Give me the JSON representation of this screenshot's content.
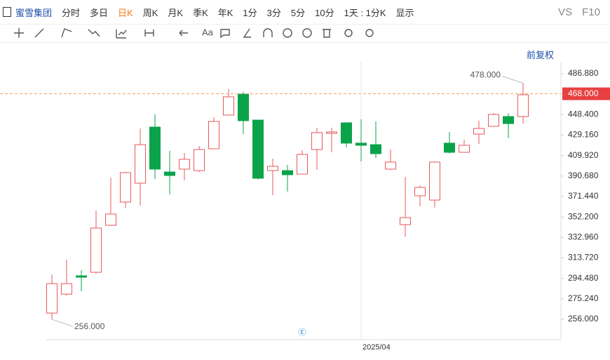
{
  "toolbar": {
    "stock": "蜜雪集团",
    "periods": [
      "分时",
      "多日",
      "日K",
      "周K",
      "月K",
      "季K",
      "年K",
      "1分",
      "3分",
      "5分",
      "10分"
    ],
    "active": "日K",
    "range": "1天 : 1分K",
    "display": "显示",
    "compare": "VS",
    "f10": "F10"
  },
  "adjust": "前复权",
  "chart_data": {
    "type": "candlestick",
    "categories": [
      null,
      null,
      null,
      null,
      null,
      null,
      null,
      null,
      null,
      null,
      null,
      null,
      null,
      null,
      null,
      null,
      null,
      null,
      null,
      null,
      null,
      "2025/04",
      null,
      null,
      null,
      null,
      null,
      null,
      null,
      null,
      null,
      null,
      null
    ],
    "open": [
      261.9,
      279.7,
      296.9,
      300.2,
      344.4,
      366.2,
      384,
      436.7,
      394.5,
      397.2,
      395.8,
      416.3,
      448,
      467.7,
      443.3,
      395.8,
      395.8,
      392.5,
      415.6,
      430.8,
      440.7,
      421.6,
      420.2,
      397.2,
      345,
      372.1,
      368.1,
      421.6,
      413,
      430.1,
      437.4,
      446.6,
      446.6
    ],
    "high": [
      298.2,
      312.1,
      302.2,
      358.2,
      389.2,
      394.5,
      435.4,
      448.6,
      414.3,
      412.3,
      418.9,
      446,
      472.4,
      469.7,
      443.3,
      407,
      401.1,
      415,
      436.1,
      436.1,
      440.7,
      444,
      442,
      415.6,
      389.9,
      382,
      404.4,
      432.1,
      424.9,
      442.7,
      449.9,
      449.9,
      478
    ],
    "low": [
      256,
      278.4,
      282.4,
      298.9,
      344.4,
      360.9,
      362.9,
      387.9,
      373.4,
      386.6,
      394.5,
      416.3,
      448,
      430.1,
      387.3,
      372.8,
      376.1,
      392.5,
      396.5,
      413,
      417.6,
      404.4,
      407.7,
      396.5,
      333.8,
      362.2,
      360.9,
      411.7,
      413,
      420.9,
      437.4,
      426.2,
      440
    ],
    "close": [
      289.6,
      289.6,
      295.6,
      341.8,
      355,
      393.9,
      420.2,
      397.2,
      391.2,
      406.4,
      415.6,
      442,
      465.1,
      442.7,
      388.6,
      399.8,
      391.9,
      411,
      431.5,
      432.1,
      421.6,
      419.6,
      411.7,
      403.8,
      351.6,
      380,
      403.8,
      413,
      419.6,
      435.4,
      448.6,
      440,
      467.1
    ],
    "up_color": "#e8585a",
    "down_color": "#0aa34a",
    "ylim": [
      236.9,
      498.1
    ],
    "yticks": [
      {
        "value": 486.88,
        "label": "486.880"
      },
      {
        "value": 448.4,
        "label": "448.400"
      },
      {
        "value": 429.16,
        "label": "429.160"
      },
      {
        "value": 409.92,
        "label": "409.920"
      },
      {
        "value": 390.68,
        "label": "390.680"
      },
      {
        "value": 371.44,
        "label": "371.440"
      },
      {
        "value": 352.2,
        "label": "352.200"
      },
      {
        "value": 332.96,
        "label": "332.960"
      },
      {
        "value": 313.72,
        "label": "313.720"
      },
      {
        "value": 294.48,
        "label": "294.480"
      },
      {
        "value": 275.24,
        "label": "275.240"
      },
      {
        "value": 256,
        "label": "256.000"
      }
    ],
    "price_line": {
      "value": 468,
      "label": "468.000",
      "color": "#f5a05a"
    },
    "max_label": {
      "value": 478,
      "label": "478.000"
    },
    "min_label": {
      "value": 256,
      "label": "256.000"
    }
  }
}
